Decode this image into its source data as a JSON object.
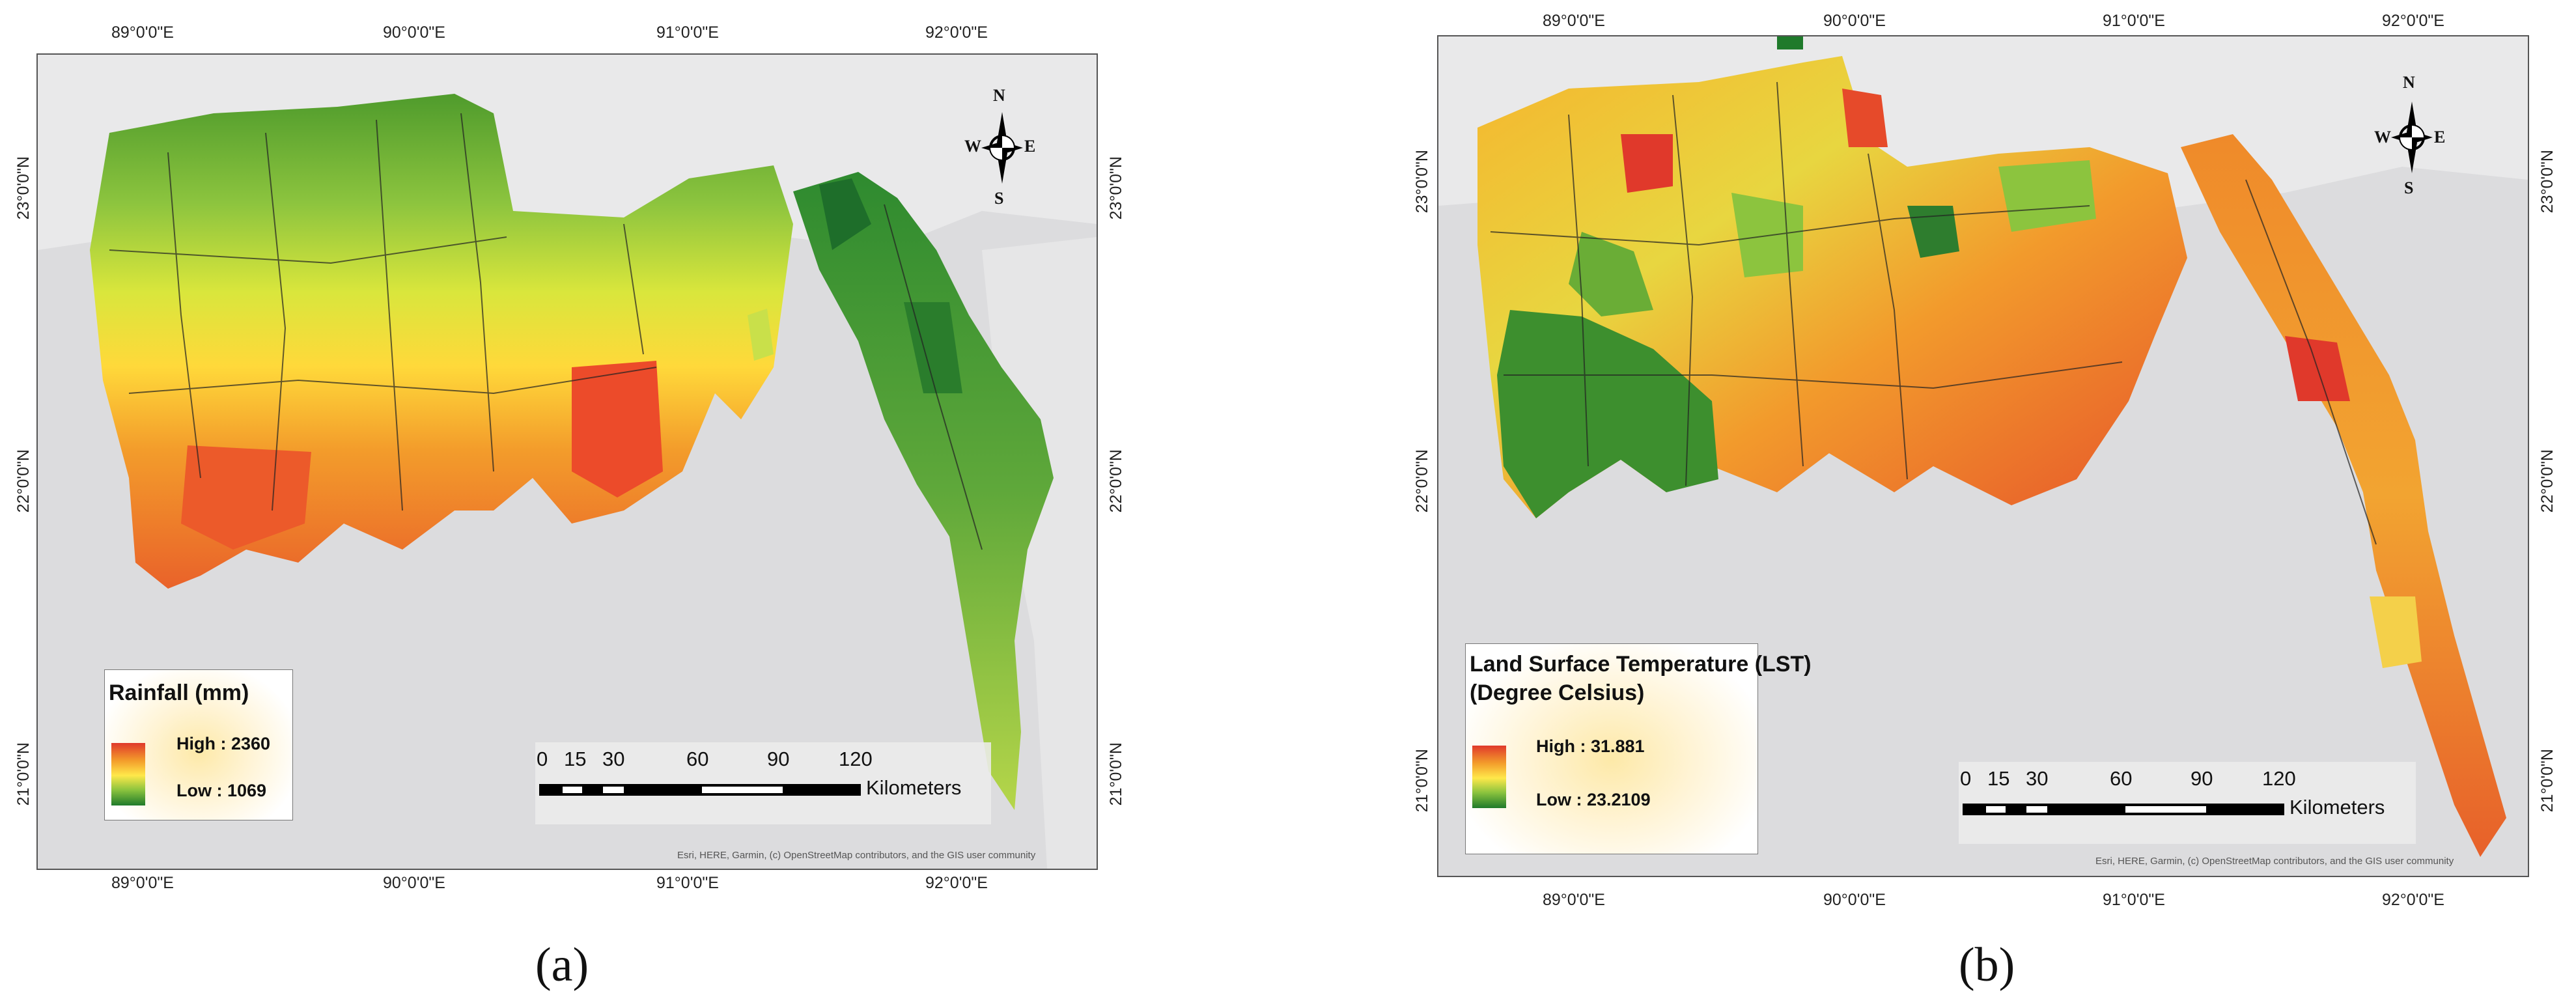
{
  "panels": {
    "a": {
      "caption": "(a)",
      "lon_ticks": [
        "89°0'0\"E",
        "90°0'0\"E",
        "91°0'0\"E",
        "92°0'0\"E"
      ],
      "lat_ticks": [
        "23°0'0\"N",
        "22°0'0\"N",
        "21°0'0\"N"
      ],
      "legend": {
        "title": "Rainfall (mm)",
        "high": "High : 2360",
        "low": "Low : 1069"
      },
      "scale": {
        "numbers": [
          "0",
          "15",
          "30",
          "60",
          "90",
          "120"
        ],
        "unit": "Kilometers"
      },
      "attribution": "Esri, HERE, Garmin, (c) OpenStreetMap contributors, and the GIS user community"
    },
    "b": {
      "caption": "(b)",
      "lon_ticks": [
        "89°0'0\"E",
        "90°0'0\"E",
        "91°0'0\"E",
        "92°0'0\"E"
      ],
      "lat_ticks": [
        "23°0'0\"N",
        "22°0'0\"N",
        "21°0'0\"N"
      ],
      "legend": {
        "title": "Land Surface Temperature (LST)",
        "subtitle": "(Degree Celsius)",
        "high": "High : 31.881",
        "low": "Low : 23.2109"
      },
      "scale": {
        "numbers": [
          "0",
          "15",
          "30",
          "60",
          "90",
          "120"
        ],
        "unit": "Kilometers"
      },
      "attribution": "Esri, HERE, Garmin, (c) OpenStreetMap contributors, and the GIS user community"
    }
  },
  "north_arrow": {
    "n": "N",
    "s": "S",
    "e": "E",
    "w": "W"
  },
  "colors": {
    "high": "#e0392b",
    "mid_high": "#f39c2b",
    "mid": "#ffe84a",
    "mid_low": "#8cc43e",
    "low": "#1f7a2b",
    "sea": "#dcdcde"
  },
  "icons": {
    "north_arrow": "compass-rose-icon"
  }
}
